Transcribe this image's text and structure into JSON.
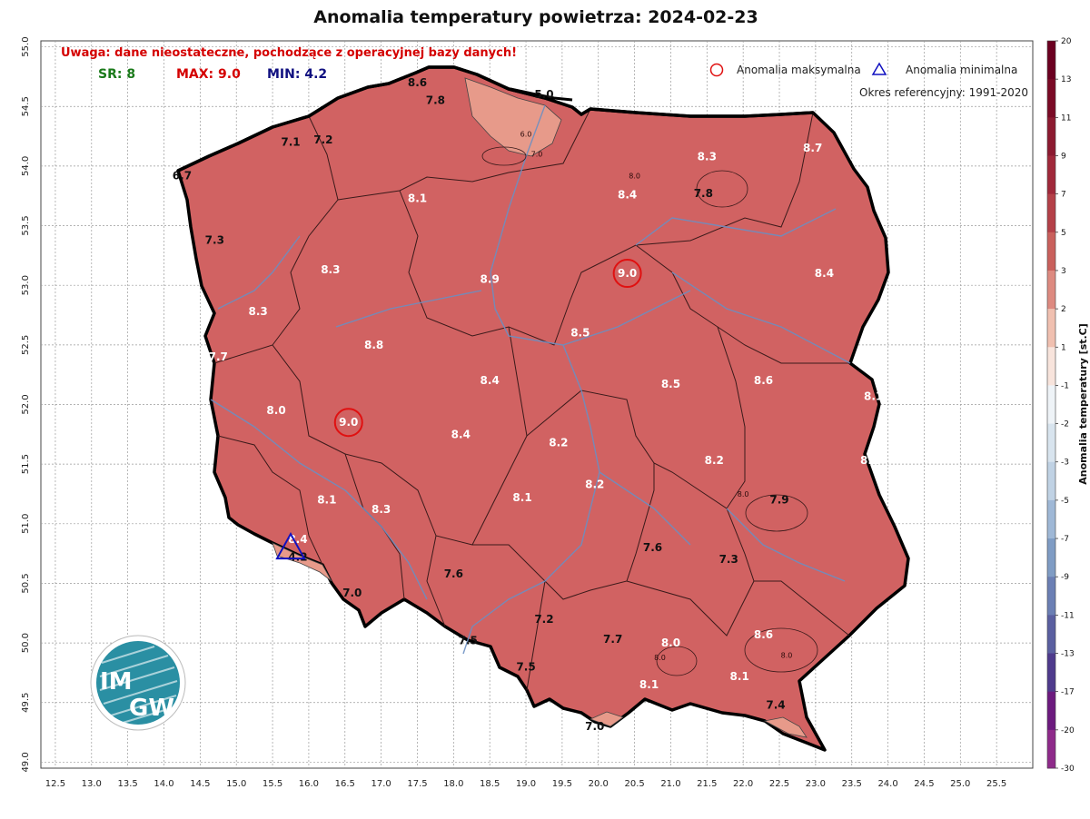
{
  "title": "Anomalia temperatury powietrza: 2024-02-23",
  "warning": "Uwaga: dane nieostateczne, pochodzące z operacyjnej bazy danych!",
  "stats": {
    "sr_label": "SR: 8",
    "max_label": "MAX: 9.0",
    "min_label": "MIN: 4.2"
  },
  "legend": {
    "max_label": "Anomalia maksymalna",
    "min_label": "Anomalia minimalna",
    "reference": "Okres referencyjny: 1991-2020"
  },
  "colorbar": {
    "label": "Anomalia temperatury [st.C]",
    "ticks": [
      "20",
      "13",
      "11",
      "9",
      "7",
      "5",
      "3",
      "2",
      "1",
      "-1",
      "-2",
      "-3",
      "-5",
      "-7",
      "-9",
      "-11",
      "-13",
      "-17",
      "-20",
      "-30"
    ]
  },
  "axes": {
    "x_ticks": [
      "12.5",
      "13.0",
      "13.5",
      "14.0",
      "14.5",
      "15.0",
      "15.5",
      "16.0",
      "16.5",
      "17.0",
      "17.5",
      "18.0",
      "18.5",
      "19.0",
      "19.5",
      "20.0",
      "20.5",
      "21.0",
      "21.5",
      "22.0",
      "22.5",
      "23.0",
      "23.5",
      "24.0",
      "24.5",
      "25.0",
      "25.5"
    ],
    "y_ticks": [
      "55.0",
      "54.5",
      "54.0",
      "53.5",
      "53.0",
      "52.5",
      "52.0",
      "51.5",
      "51.0",
      "50.5",
      "50.0",
      "49.5",
      "49.0"
    ],
    "lon_range": [
      12.3,
      26.0
    ],
    "lat_range": [
      48.95,
      55.05
    ],
    "grid": true
  },
  "colors": {
    "fill_main": "#d16262",
    "fill_light": "#e79a8a",
    "border": "#000000",
    "rivers": "#6b8fc2",
    "max_marker": "#e01010",
    "min_marker": "#1010c0",
    "stat_sr": "#1a7a1a",
    "stat_max": "#d40000",
    "stat_min": "#101080"
  },
  "logo": {
    "text_top": "IM",
    "text_bottom": "GW"
  },
  "chart_data": {
    "type": "map",
    "max_markers": [
      {
        "lon": 20.4,
        "lat": 53.1,
        "value": "9.0"
      },
      {
        "lon": 16.55,
        "lat": 51.85,
        "value": "9.0"
      }
    ],
    "min_marker": {
      "lon": 15.75,
      "lat": 50.8,
      "value": "4.2"
    },
    "values": [
      {
        "lon": 17.5,
        "lat": 54.7,
        "value": "8.6",
        "style": "dark"
      },
      {
        "lon": 17.75,
        "lat": 54.55,
        "value": "7.8",
        "style": "dark"
      },
      {
        "lon": 19.25,
        "lat": 54.6,
        "value": "5.0",
        "style": "dark"
      },
      {
        "lon": 15.75,
        "lat": 54.2,
        "value": "7.1",
        "style": "dark"
      },
      {
        "lon": 16.2,
        "lat": 54.22,
        "value": "7.2",
        "style": "dark"
      },
      {
        "lon": 14.25,
        "lat": 53.92,
        "value": "6.7",
        "style": "dark"
      },
      {
        "lon": 21.5,
        "lat": 54.08,
        "value": "8.3",
        "style": "white"
      },
      {
        "lon": 22.96,
        "lat": 54.15,
        "value": "8.7",
        "style": "white"
      },
      {
        "lon": 21.45,
        "lat": 53.77,
        "value": "7.8",
        "style": "dark"
      },
      {
        "lon": 20.4,
        "lat": 53.76,
        "value": "8.4",
        "style": "white"
      },
      {
        "lon": 17.5,
        "lat": 53.73,
        "value": "8.1",
        "style": "white"
      },
      {
        "lon": 14.7,
        "lat": 53.38,
        "value": "7.3",
        "style": "dark"
      },
      {
        "lon": 16.3,
        "lat": 53.13,
        "value": "8.3",
        "style": "white"
      },
      {
        "lon": 18.5,
        "lat": 53.05,
        "value": "8.9",
        "style": "white"
      },
      {
        "lon": 23.12,
        "lat": 53.1,
        "value": "8.4",
        "style": "white"
      },
      {
        "lon": 15.3,
        "lat": 52.78,
        "value": "8.3",
        "style": "white"
      },
      {
        "lon": 19.75,
        "lat": 52.6,
        "value": "8.5",
        "style": "white"
      },
      {
        "lon": 16.9,
        "lat": 52.5,
        "value": "8.8",
        "style": "white"
      },
      {
        "lon": 14.75,
        "lat": 52.4,
        "value": "7.7",
        "style": "white"
      },
      {
        "lon": 18.5,
        "lat": 52.2,
        "value": "8.4",
        "style": "white"
      },
      {
        "lon": 21.0,
        "lat": 52.17,
        "value": "8.5",
        "style": "white"
      },
      {
        "lon": 22.28,
        "lat": 52.2,
        "value": "8.6",
        "style": "white"
      },
      {
        "lon": 23.8,
        "lat": 52.07,
        "value": "8.1",
        "style": "white"
      },
      {
        "lon": 15.55,
        "lat": 51.95,
        "value": "8.0",
        "style": "white"
      },
      {
        "lon": 18.1,
        "lat": 51.75,
        "value": "8.4",
        "style": "white"
      },
      {
        "lon": 19.45,
        "lat": 51.68,
        "value": "8.2",
        "style": "white"
      },
      {
        "lon": 21.6,
        "lat": 51.53,
        "value": "8.2",
        "style": "white"
      },
      {
        "lon": 23.75,
        "lat": 51.53,
        "value": "8.2",
        "style": "white"
      },
      {
        "lon": 19.95,
        "lat": 51.33,
        "value": "8.2",
        "style": "white"
      },
      {
        "lon": 16.25,
        "lat": 51.2,
        "value": "8.1",
        "style": "white"
      },
      {
        "lon": 18.95,
        "lat": 51.22,
        "value": "8.1",
        "style": "white"
      },
      {
        "lon": 17.0,
        "lat": 51.12,
        "value": "8.3",
        "style": "white"
      },
      {
        "lon": 22.5,
        "lat": 51.2,
        "value": "7.9",
        "style": "dark"
      },
      {
        "lon": 15.85,
        "lat": 50.87,
        "value": "8.4",
        "style": "white"
      },
      {
        "lon": 15.85,
        "lat": 50.72,
        "value": "4.2",
        "style": "dark"
      },
      {
        "lon": 20.75,
        "lat": 50.8,
        "value": "7.6",
        "style": "dark"
      },
      {
        "lon": 21.8,
        "lat": 50.7,
        "value": "7.3",
        "style": "dark"
      },
      {
        "lon": 18.0,
        "lat": 50.58,
        "value": "7.6",
        "style": "dark"
      },
      {
        "lon": 16.6,
        "lat": 50.42,
        "value": "7.0",
        "style": "dark"
      },
      {
        "lon": 19.25,
        "lat": 50.2,
        "value": "7.2",
        "style": "dark"
      },
      {
        "lon": 20.2,
        "lat": 50.03,
        "value": "7.7",
        "style": "dark"
      },
      {
        "lon": 18.2,
        "lat": 50.02,
        "value": "7.5",
        "style": "dark"
      },
      {
        "lon": 21.0,
        "lat": 50.0,
        "value": "8.0",
        "style": "white"
      },
      {
        "lon": 22.28,
        "lat": 50.07,
        "value": "8.6",
        "style": "white"
      },
      {
        "lon": 19.0,
        "lat": 49.8,
        "value": "7.5",
        "style": "dark"
      },
      {
        "lon": 20.7,
        "lat": 49.65,
        "value": "8.1",
        "style": "white"
      },
      {
        "lon": 21.95,
        "lat": 49.72,
        "value": "8.1",
        "style": "white"
      },
      {
        "lon": 22.45,
        "lat": 49.48,
        "value": "7.4",
        "style": "dark"
      },
      {
        "lon": 19.95,
        "lat": 49.3,
        "value": "7.0",
        "style": "dark"
      }
    ],
    "isolines": [
      {
        "lon": 20.5,
        "lat": 53.92,
        "value": "8.0"
      },
      {
        "lon": 22.0,
        "lat": 51.25,
        "value": "8.0"
      },
      {
        "lon": 22.6,
        "lat": 49.9,
        "value": "8.0"
      },
      {
        "lon": 20.85,
        "lat": 49.88,
        "value": "8.0"
      },
      {
        "lon": 19.15,
        "lat": 54.1,
        "value": "7.0"
      },
      {
        "lon": 19.0,
        "lat": 54.27,
        "value": "6.0"
      }
    ]
  }
}
